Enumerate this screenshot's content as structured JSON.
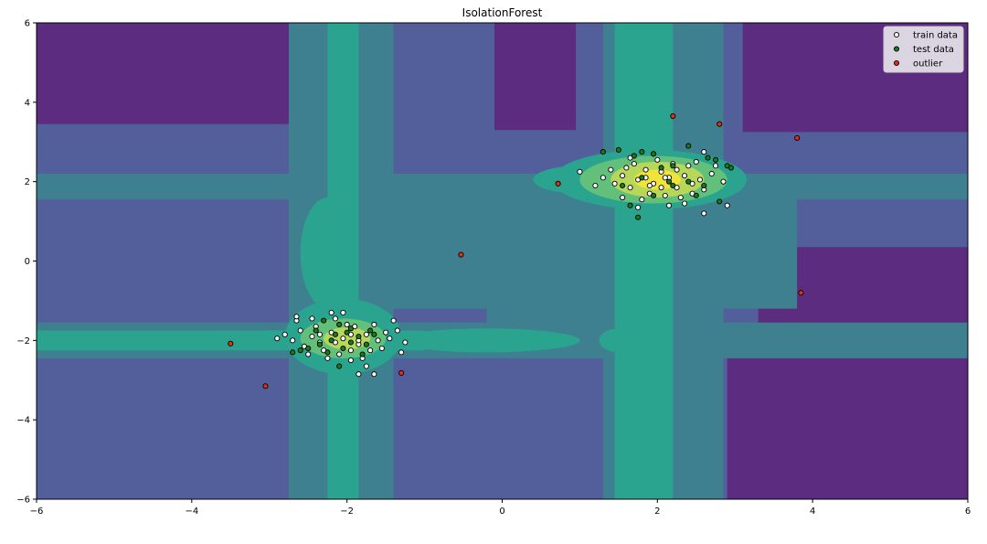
{
  "chart_data": {
    "type": "scatter",
    "title": "IsolationForest",
    "xlabel": "",
    "ylabel": "",
    "xlim": [
      -6,
      6
    ],
    "ylim": [
      -6,
      6
    ],
    "xticks": [
      "−6",
      "−4",
      "−2",
      "0",
      "2",
      "4",
      "6"
    ],
    "xtick_values": [
      -6,
      -4,
      -2,
      0,
      2,
      4,
      6
    ],
    "yticks": [
      "−6",
      "−4",
      "−2",
      "0",
      "2",
      "4",
      "6"
    ],
    "ytick_values": [
      -6,
      -4,
      -2,
      0,
      2,
      4,
      6
    ],
    "legend_position": "top-right",
    "background": "filled contour of anomaly score (viridis)",
    "contour_colors": [
      "#5b2c80",
      "#525f9a",
      "#3f8090",
      "#2aa48f",
      "#62c07b",
      "#b7d75a",
      "#f0e43a"
    ],
    "series": [
      {
        "name": "train data",
        "color": "#ffffff",
        "points": [
          [
            1.75,
            2.05
          ],
          [
            1.95,
            1.95
          ],
          [
            2.15,
            2.1
          ],
          [
            1.85,
            2.3
          ],
          [
            2.25,
            1.85
          ],
          [
            2.05,
            2.25
          ],
          [
            1.65,
            1.85
          ],
          [
            2.35,
            2.15
          ],
          [
            2.45,
            1.95
          ],
          [
            1.55,
            2.15
          ],
          [
            1.9,
            1.7
          ],
          [
            2.1,
            1.65
          ],
          [
            2.3,
            1.6
          ],
          [
            1.7,
            2.45
          ],
          [
            2.0,
            2.55
          ],
          [
            2.4,
            2.4
          ],
          [
            1.45,
            1.95
          ],
          [
            2.55,
            2.05
          ],
          [
            1.8,
            1.55
          ],
          [
            2.2,
            2.45
          ],
          [
            1.6,
            2.35
          ],
          [
            2.6,
            1.8
          ],
          [
            1.4,
            2.3
          ],
          [
            2.5,
            2.5
          ],
          [
            1.3,
            2.1
          ],
          [
            2.7,
            2.2
          ],
          [
            1.95,
            2.7
          ],
          [
            2.15,
            1.4
          ],
          [
            1.75,
            1.35
          ],
          [
            2.35,
            1.45
          ],
          [
            2.6,
            2.75
          ],
          [
            1.55,
            1.6
          ],
          [
            2.85,
            2.0
          ],
          [
            1.2,
            1.9
          ],
          [
            2.05,
            1.85
          ],
          [
            1.85,
            2.1
          ],
          [
            2.25,
            2.3
          ],
          [
            2.45,
            1.7
          ],
          [
            1.65,
            2.6
          ],
          [
            2.75,
            2.4
          ],
          [
            2.9,
            1.4
          ],
          [
            2.6,
            1.2
          ],
          [
            1.0,
            2.25
          ],
          [
            2.1,
            2.1
          ],
          [
            1.9,
            1.9
          ],
          [
            -2.05,
            -1.95
          ],
          [
            -1.85,
            -2.1
          ],
          [
            -2.2,
            -1.8
          ],
          [
            -1.95,
            -2.25
          ],
          [
            -2.35,
            -2.05
          ],
          [
            -1.75,
            -1.85
          ],
          [
            -2.1,
            -2.35
          ],
          [
            -1.6,
            -2.0
          ],
          [
            -2.45,
            -1.9
          ],
          [
            -1.9,
            -1.65
          ],
          [
            -2.25,
            -2.45
          ],
          [
            -1.7,
            -2.25
          ],
          [
            -2.55,
            -2.15
          ],
          [
            -1.5,
            -1.8
          ],
          [
            -2.0,
            -1.6
          ],
          [
            -2.4,
            -1.65
          ],
          [
            -1.8,
            -2.45
          ],
          [
            -2.6,
            -1.75
          ],
          [
            -1.55,
            -2.2
          ],
          [
            -2.15,
            -1.45
          ],
          [
            -1.65,
            -1.6
          ],
          [
            -2.3,
            -2.25
          ],
          [
            -1.45,
            -1.95
          ],
          [
            -2.7,
            -2.0
          ],
          [
            -1.95,
            -2.5
          ],
          [
            -2.5,
            -2.35
          ],
          [
            -1.35,
            -1.75
          ],
          [
            -2.8,
            -1.85
          ],
          [
            -2.05,
            -1.3
          ],
          [
            -1.75,
            -2.65
          ],
          [
            -2.45,
            -1.45
          ],
          [
            -1.25,
            -2.05
          ],
          [
            -2.65,
            -1.5
          ],
          [
            -1.3,
            -2.3
          ],
          [
            -1.65,
            -2.85
          ],
          [
            -1.85,
            -2.85
          ],
          [
            -2.65,
            -1.4
          ],
          [
            -2.2,
            -1.3
          ],
          [
            -2.9,
            -1.95
          ],
          [
            -1.4,
            -1.5
          ],
          [
            -2.15,
            -2.05
          ],
          [
            -1.95,
            -1.85
          ],
          [
            -2.35,
            -1.85
          ],
          [
            -1.85,
            -2.0
          ]
        ]
      },
      {
        "name": "test data",
        "color": "#1b7a1b",
        "points": [
          [
            1.3,
            2.75
          ],
          [
            1.5,
            2.8
          ],
          [
            1.8,
            2.75
          ],
          [
            1.95,
            2.7
          ],
          [
            2.4,
            2.9
          ],
          [
            2.65,
            2.6
          ],
          [
            2.75,
            2.55
          ],
          [
            2.9,
            2.4
          ],
          [
            2.95,
            2.35
          ],
          [
            2.2,
            2.4
          ],
          [
            2.4,
            2.0
          ],
          [
            2.2,
            1.9
          ],
          [
            1.8,
            2.1
          ],
          [
            2.6,
            1.9
          ],
          [
            1.55,
            1.9
          ],
          [
            1.65,
            1.4
          ],
          [
            1.75,
            1.1
          ],
          [
            1.95,
            1.65
          ],
          [
            2.05,
            2.35
          ],
          [
            2.15,
            2.0
          ],
          [
            2.5,
            1.65
          ],
          [
            2.8,
            1.5
          ],
          [
            1.7,
            2.65
          ],
          [
            -2.3,
            -1.5
          ],
          [
            -2.1,
            -1.6
          ],
          [
            -2.0,
            -1.8
          ],
          [
            -2.2,
            -2.0
          ],
          [
            -1.85,
            -1.9
          ],
          [
            -1.75,
            -2.1
          ],
          [
            -2.05,
            -2.2
          ],
          [
            -2.25,
            -2.3
          ],
          [
            -1.95,
            -2.05
          ],
          [
            -2.15,
            -1.85
          ],
          [
            -2.35,
            -2.1
          ],
          [
            -1.65,
            -1.85
          ],
          [
            -2.5,
            -2.2
          ],
          [
            -2.6,
            -2.25
          ],
          [
            -2.7,
            -2.3
          ],
          [
            -1.8,
            -2.35
          ],
          [
            -2.1,
            -2.65
          ],
          [
            -1.95,
            -1.7
          ],
          [
            -1.7,
            -1.75
          ],
          [
            -2.4,
            -1.75
          ]
        ]
      },
      {
        "name": "outlier",
        "color": "#e32d16",
        "points": [
          [
            -0.53,
            0.16
          ],
          [
            0.72,
            1.95
          ],
          [
            2.2,
            3.65
          ],
          [
            2.8,
            3.45
          ],
          [
            3.8,
            3.1
          ],
          [
            3.85,
            -0.8
          ],
          [
            -3.5,
            -2.08
          ],
          [
            -3.05,
            -3.15
          ],
          [
            -1.3,
            -2.82
          ]
        ]
      }
    ]
  }
}
